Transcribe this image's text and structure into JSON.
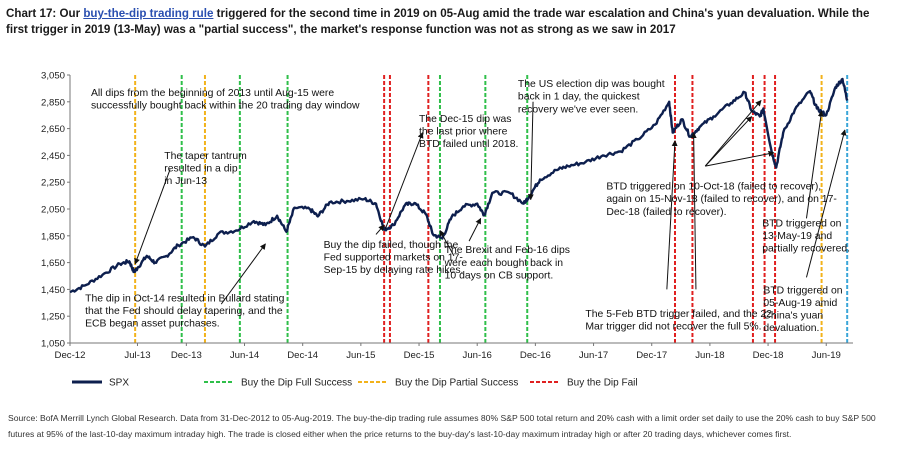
{
  "header": {
    "prefix": "Chart 17: Our ",
    "link_text": "buy-the-dip trading rule",
    "rest": " triggered for the second time in 2019 on 05-Aug amid the trade war escalation and China's yuan devaluation. While the first trigger in 2019 (13-May) was a \"partial success\", the market's response function was not as strong as we saw in 2017"
  },
  "source": "Source: BofA Merrill Lynch Global Research. Data from 31-Dec-2012 to 05-Aug-2019. The buy-the-dip trading rule assumes 80% S&P 500 total return and 20% cash with a limit order set daily to use the 20% cash to buy S&P 500 futures at 95% of the last-10-day maximum intraday high. The trade is closed either when the price returns to the buy-day's last-10-day maximum intraday high or after 20 trading days, whichever comes first.",
  "colors": {
    "spx": "#0d1f4e",
    "success": "#2fbf4a",
    "partial": "#f2b21b",
    "fail": "#e02020",
    "latest": "#3aa6d8",
    "arrow": "#111111"
  },
  "chart_data": {
    "type": "line",
    "ylim": [
      1050,
      3050
    ],
    "yticks": [
      1050,
      1250,
      1450,
      1650,
      1850,
      2050,
      2250,
      2450,
      2650,
      2850,
      3050
    ],
    "ytick_labels": [
      "1,050",
      "1,250",
      "1,450",
      "1,650",
      "1,850",
      "2,050",
      "2,250",
      "2,450",
      "2,650",
      "2,850",
      "3,050"
    ],
    "xlim": [
      2012.92,
      2019.65
    ],
    "xticks": [
      {
        "x": 2012.92,
        "label": "Dec-12"
      },
      {
        "x": 2013.5,
        "label": "Jul-13"
      },
      {
        "x": 2013.92,
        "label": "Dec-13"
      },
      {
        "x": 2014.42,
        "label": "Jun-14"
      },
      {
        "x": 2014.92,
        "label": "Dec-14"
      },
      {
        "x": 2015.42,
        "label": "Jun-15"
      },
      {
        "x": 2015.92,
        "label": "Dec-15"
      },
      {
        "x": 2016.42,
        "label": "Jun-16"
      },
      {
        "x": 2016.92,
        "label": "Dec-16"
      },
      {
        "x": 2017.42,
        "label": "Jun-17"
      },
      {
        "x": 2017.92,
        "label": "Dec-17"
      },
      {
        "x": 2018.42,
        "label": "Jun-18"
      },
      {
        "x": 2018.92,
        "label": "Dec-18"
      },
      {
        "x": 2019.42,
        "label": "Jun-19"
      }
    ],
    "series": [
      {
        "name": "SPX",
        "points": [
          [
            2012.92,
            1430
          ],
          [
            2013.05,
            1480
          ],
          [
            2013.2,
            1560
          ],
          [
            2013.35,
            1640
          ],
          [
            2013.43,
            1660
          ],
          [
            2013.47,
            1580
          ],
          [
            2013.5,
            1610
          ],
          [
            2013.58,
            1700
          ],
          [
            2013.65,
            1650
          ],
          [
            2013.75,
            1700
          ],
          [
            2013.85,
            1780
          ],
          [
            2013.98,
            1840
          ],
          [
            2014.08,
            1770
          ],
          [
            2014.2,
            1870
          ],
          [
            2014.35,
            1890
          ],
          [
            2014.5,
            1960
          ],
          [
            2014.6,
            1930
          ],
          [
            2014.7,
            2000
          ],
          [
            2014.78,
            1880
          ],
          [
            2014.85,
            2060
          ],
          [
            2014.98,
            2050
          ],
          [
            2015.05,
            1995
          ],
          [
            2015.15,
            2100
          ],
          [
            2015.3,
            2110
          ],
          [
            2015.45,
            2125
          ],
          [
            2015.55,
            2090
          ],
          [
            2015.62,
            1895
          ],
          [
            2015.7,
            1930
          ],
          [
            2015.8,
            2080
          ],
          [
            2015.88,
            2095
          ],
          [
            2015.98,
            2010
          ],
          [
            2016.04,
            1860
          ],
          [
            2016.12,
            1830
          ],
          [
            2016.2,
            1990
          ],
          [
            2016.3,
            2070
          ],
          [
            2016.42,
            2090
          ],
          [
            2016.48,
            2005
          ],
          [
            2016.55,
            2170
          ],
          [
            2016.7,
            2170
          ],
          [
            2016.82,
            2090
          ],
          [
            2016.87,
            2150
          ],
          [
            2016.96,
            2270
          ],
          [
            2017.1,
            2340
          ],
          [
            2017.2,
            2370
          ],
          [
            2017.35,
            2400
          ],
          [
            2017.5,
            2450
          ],
          [
            2017.65,
            2480
          ],
          [
            2017.8,
            2570
          ],
          [
            2017.95,
            2680
          ],
          [
            2018.07,
            2850
          ],
          [
            2018.1,
            2620
          ],
          [
            2018.18,
            2720
          ],
          [
            2018.25,
            2590
          ],
          [
            2018.33,
            2660
          ],
          [
            2018.45,
            2740
          ],
          [
            2018.6,
            2840
          ],
          [
            2018.72,
            2920
          ],
          [
            2018.78,
            2780
          ],
          [
            2018.85,
            2740
          ],
          [
            2018.88,
            2800
          ],
          [
            2018.95,
            2480
          ],
          [
            2018.99,
            2360
          ],
          [
            2019.05,
            2620
          ],
          [
            2019.15,
            2790
          ],
          [
            2019.28,
            2930
          ],
          [
            2019.34,
            2800
          ],
          [
            2019.42,
            2750
          ],
          [
            2019.5,
            2960
          ],
          [
            2019.56,
            3020
          ],
          [
            2019.6,
            2860
          ]
        ]
      }
    ],
    "trigger_lines": [
      {
        "x": 2013.48,
        "kind": "partial"
      },
      {
        "x": 2013.88,
        "kind": "success"
      },
      {
        "x": 2014.08,
        "kind": "partial"
      },
      {
        "x": 2014.38,
        "kind": "success"
      },
      {
        "x": 2014.79,
        "kind": "success"
      },
      {
        "x": 2015.62,
        "kind": "fail"
      },
      {
        "x": 2015.67,
        "kind": "fail"
      },
      {
        "x": 2016.0,
        "kind": "fail"
      },
      {
        "x": 2016.1,
        "kind": "success"
      },
      {
        "x": 2016.49,
        "kind": "success"
      },
      {
        "x": 2016.85,
        "kind": "success"
      },
      {
        "x": 2018.12,
        "kind": "fail"
      },
      {
        "x": 2018.27,
        "kind": "fail"
      },
      {
        "x": 2018.79,
        "kind": "fail"
      },
      {
        "x": 2018.89,
        "kind": "fail"
      },
      {
        "x": 2018.98,
        "kind": "fail"
      },
      {
        "x": 2019.38,
        "kind": "partial"
      },
      {
        "x": 2019.6,
        "kind": "latest"
      }
    ],
    "legend": [
      {
        "label": "SPX",
        "kind": "spx"
      },
      {
        "label": "Buy the Dip Full Success",
        "kind": "success"
      },
      {
        "label": "Buy the Dip Partial Success",
        "kind": "partial"
      },
      {
        "label": "Buy the Dip Fail",
        "kind": "fail"
      }
    ],
    "annotations": [
      {
        "lines": [
          "All dips from the beginning of 2013 until Aug-15 were",
          "successfully bought back within the 20 trading day window"
        ],
        "x": 2013.1,
        "y": 2895
      },
      {
        "lines": [
          "The taper tantrum",
          "resulted in a dip",
          "in Jun-13"
        ],
        "x": 2013.73,
        "y": 2425
      },
      {
        "lines": [
          "The dip in Oct-14 resulted in Bullard stating",
          "that the Fed should delay tapering, and the",
          "ECB began asset purchases."
        ],
        "x": 2013.05,
        "y": 1360
      },
      {
        "lines": [
          "The Dec-15 dip was",
          "the last prior where",
          "BTD failed until 2018."
        ],
        "x": 2015.92,
        "y": 2700
      },
      {
        "lines": [
          "Buy the dip failed, though the",
          "Fed supported markets on 17-",
          "Sep-15 by delaying rate hikes."
        ],
        "x": 2015.1,
        "y": 1760
      },
      {
        "lines": [
          "The Brexit and Feb-16 dips",
          "were each bought back in",
          "10 days on CB support."
        ],
        "x": 2016.14,
        "y": 1720
      },
      {
        "lines": [
          "The US election dip was bought",
          "back in 1 day, the quickest",
          "recovery we've ever seen."
        ],
        "x": 2016.77,
        "y": 2960
      },
      {
        "lines": [
          "BTD triggered on 10-Oct-18 (failed to recover),",
          "again on 15-Nov-18 (failed to recover), and on 17-",
          "Dec-18 (failed to recover)."
        ],
        "x": 2017.53,
        "y": 2195
      },
      {
        "lines": [
          "The 5-Feb BTD trigger failed, and the 22-",
          "Mar trigger did not recover the full 5%."
        ],
        "x": 2017.35,
        "y": 1245
      },
      {
        "lines": [
          "BTD triggered on",
          "13-May-19 and",
          "partially recovered."
        ],
        "x": 2018.87,
        "y": 1920
      },
      {
        "lines": [
          "BTD triggered on",
          "05-Aug-19 amid",
          "China's yuan",
          "devaluation."
        ],
        "x": 2018.88,
        "y": 1420
      }
    ]
  }
}
